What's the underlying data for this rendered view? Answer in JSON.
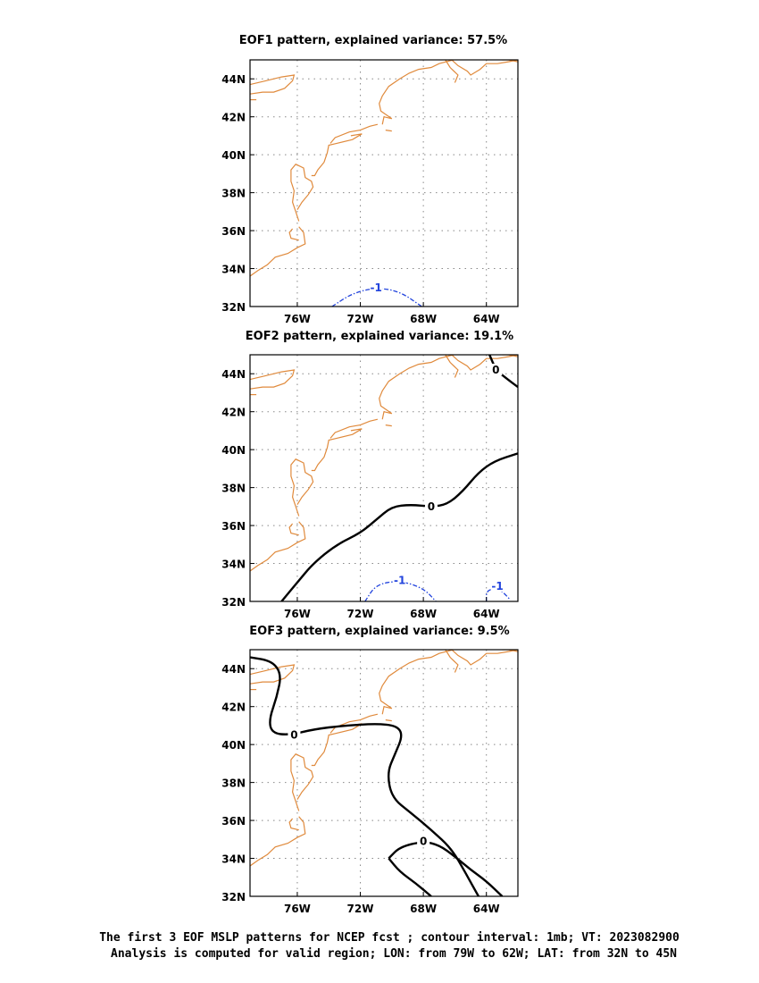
{
  "colors": {
    "coastline": "#e08a3c",
    "zero_contour": "#000000",
    "negative_contour": "#2244dd",
    "grid": "#888888"
  },
  "map": {
    "lon_ticks": [
      "76W",
      "72W",
      "68W",
      "64W"
    ],
    "lat_ticks": [
      "32N",
      "34N",
      "36N",
      "38N",
      "40N",
      "42N",
      "44N"
    ],
    "lon_range": [
      -79,
      -62
    ],
    "lat_range": [
      32,
      45
    ]
  },
  "panels": [
    {
      "title": "EOF1 pattern, explained variance: 57.5%",
      "contours": [
        {
          "label": "-1",
          "style": "dashed",
          "color": "negative_contour",
          "points": [
            [
              -73.8,
              32
            ],
            [
              -72.5,
              32.7
            ],
            [
              -71,
              33
            ],
            [
              -69.5,
              32.8
            ],
            [
              -68.1,
              32
            ]
          ],
          "label_at": [
            -71,
            33
          ]
        }
      ]
    },
    {
      "title": "EOF2 pattern, explained variance: 19.1%",
      "contours": [
        {
          "label": "0",
          "style": "solid",
          "color": "zero_contour",
          "points": [
            [
              -77,
              32
            ],
            [
              -76,
              33
            ],
            [
              -75,
              34
            ],
            [
              -73.5,
              35
            ],
            [
              -72,
              35.6
            ],
            [
              -71,
              36.3
            ],
            [
              -70,
              37
            ],
            [
              -68.8,
              37.1
            ],
            [
              -67.5,
              37
            ],
            [
              -66.5,
              37.1
            ],
            [
              -65.5,
              37.8
            ],
            [
              -64.5,
              38.8
            ],
            [
              -63.5,
              39.4
            ],
            [
              -62,
              39.8
            ]
          ],
          "label_at": [
            -67.5,
            37
          ]
        },
        {
          "label": "0",
          "style": "solid",
          "color": "zero_contour",
          "points": [
            [
              -63.8,
              45
            ],
            [
              -63.4,
              44.2
            ],
            [
              -62.8,
              43.8
            ],
            [
              -62,
              43.3
            ]
          ],
          "label_at": [
            -63.4,
            44.2
          ]
        },
        {
          "label": "-1",
          "style": "dashed",
          "color": "negative_contour",
          "points": [
            [
              -71.7,
              32
            ],
            [
              -71,
              32.9
            ],
            [
              -69.5,
              33.1
            ],
            [
              -68,
              32.7
            ],
            [
              -67.2,
              32
            ]
          ],
          "label_at": [
            -69.5,
            33.1
          ]
        },
        {
          "label": "-1",
          "style": "dashed",
          "color": "negative_contour",
          "points": [
            [
              -64,
              32
            ],
            [
              -64,
              32.6
            ],
            [
              -63.2,
              32.7
            ],
            [
              -62.5,
              32.1
            ]
          ],
          "label_at": [
            -63.3,
            32.8
          ]
        }
      ]
    },
    {
      "title": "EOF3 pattern, explained variance: 9.5%",
      "contours": [
        {
          "label": "0",
          "style": "solid",
          "color": "zero_contour",
          "points": [
            [
              -79,
              44.6
            ],
            [
              -77.6,
              44.4
            ],
            [
              -77,
              43.7
            ],
            [
              -77.3,
              42.5
            ],
            [
              -77.8,
              41.3
            ],
            [
              -77.6,
              40.6
            ],
            [
              -76.5,
              40.5
            ],
            [
              -75,
              40.8
            ],
            [
              -73,
              41
            ],
            [
              -71,
              41.1
            ],
            [
              -69.7,
              41
            ],
            [
              -69.3,
              40.5
            ],
            [
              -69.8,
              39.5
            ],
            [
              -70.3,
              38.5
            ],
            [
              -70,
              37.2
            ],
            [
              -68.8,
              36.4
            ],
            [
              -67.5,
              35.5
            ],
            [
              -66.2,
              34.5
            ],
            [
              -65.3,
              33.2
            ],
            [
              -64.5,
              32
            ]
          ],
          "label_at": [
            -76.2,
            40.5
          ]
        },
        {
          "label": "0",
          "style": "solid",
          "color": "zero_contour",
          "points": [
            [
              -70.2,
              34
            ],
            [
              -69.5,
              34.6
            ],
            [
              -68,
              34.9
            ],
            [
              -67,
              34.7
            ],
            [
              -66,
              34.1
            ],
            [
              -65,
              33.4
            ],
            [
              -64,
              32.8
            ],
            [
              -63,
              32
            ]
          ],
          "label_at": [
            -68,
            34.9
          ]
        },
        {
          "label": "0",
          "style": "solid",
          "color": "zero_contour",
          "points": [
            [
              -70.2,
              34
            ],
            [
              -69.5,
              33.3
            ],
            [
              -68.5,
              32.7
            ],
            [
              -67.5,
              32
            ]
          ],
          "label_at": null
        }
      ]
    }
  ],
  "caption": {
    "line1": "The first 3 EOF MSLP patterns for NCEP fcst ; contour interval: 1mb; VT: 2023082900",
    "line2": "Analysis is computed for valid region; LON: from 79W to 62W; LAT: from 32N to 45N"
  }
}
